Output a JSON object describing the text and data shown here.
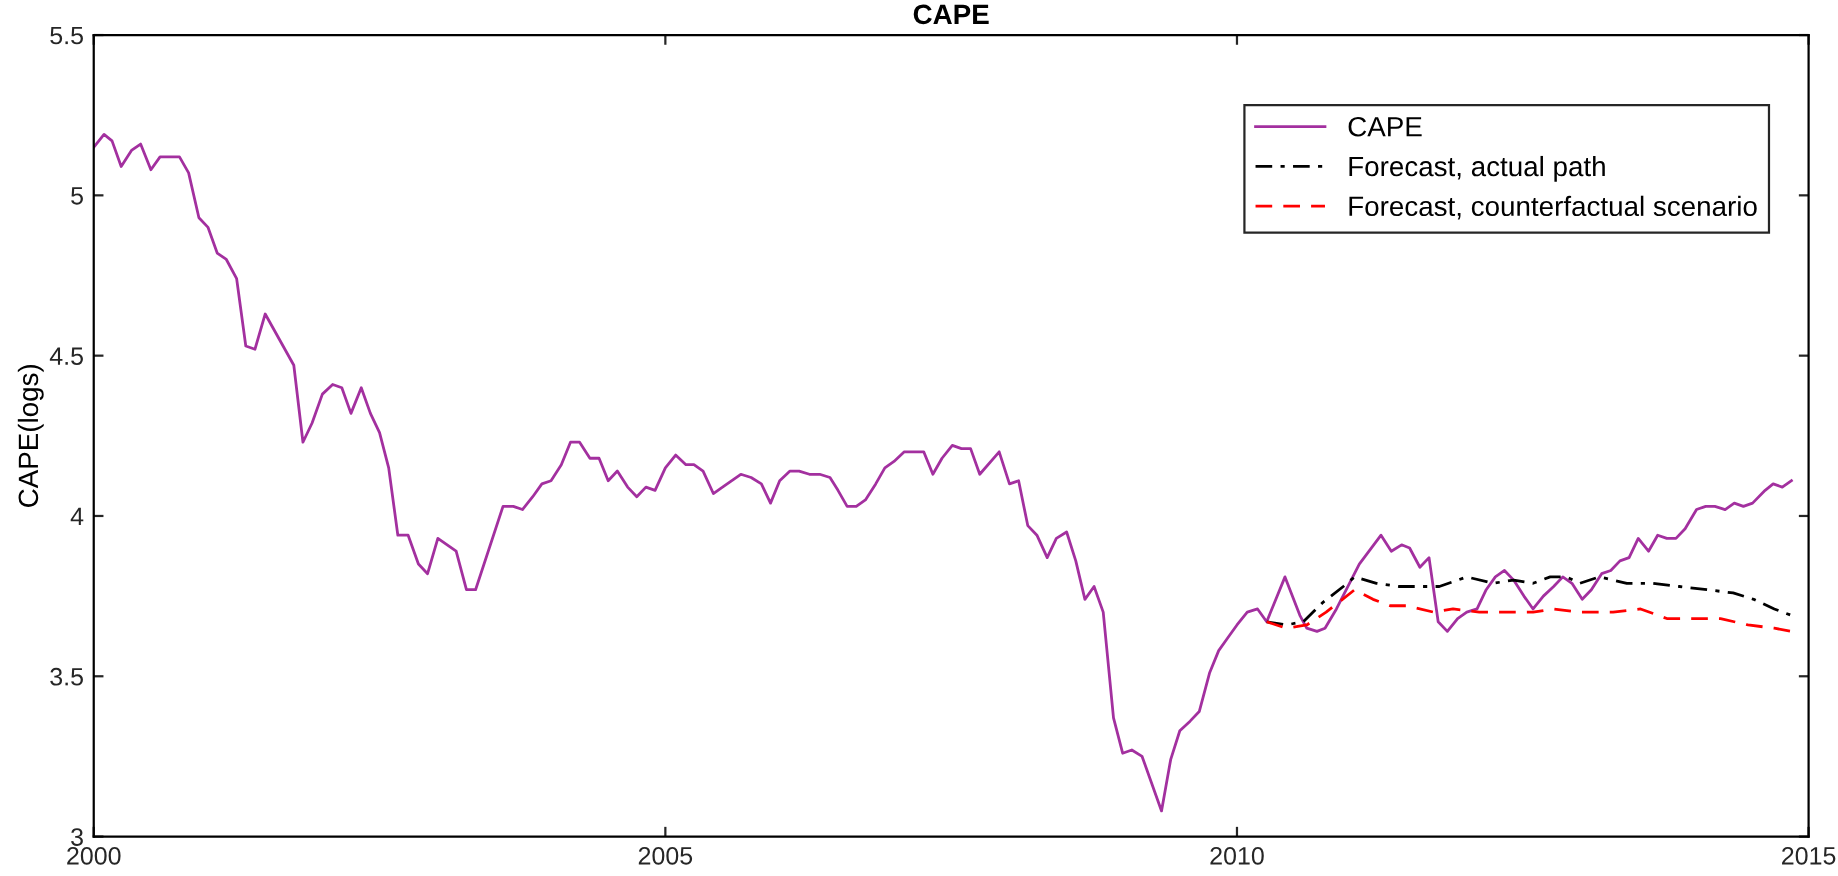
{
  "chart_data": {
    "type": "line",
    "title": "CAPE",
    "ylabel": "CAPE(logs)",
    "xlim": [
      2000,
      2015
    ],
    "xticks": [
      2000,
      2005,
      2010,
      2015
    ],
    "ylim": [
      3,
      5.5
    ],
    "yticks": [
      3,
      3.5,
      4,
      4.5,
      5,
      5.5
    ],
    "grid": false,
    "legend": "top right",
    "marker": "none",
    "series": [
      {
        "name": "CAPE",
        "color": "#a3309f",
        "line_style": "solid",
        "x": [
          2000.0,
          2000.09,
          2000.16,
          2000.24,
          2000.33,
          2000.41,
          2000.5,
          2000.58,
          2000.75,
          2000.83,
          2000.92,
          2001.0,
          2001.08,
          2001.16,
          2001.25,
          2001.33,
          2001.41,
          2001.5,
          2001.75,
          2001.83,
          2001.91,
          2002.0,
          2002.09,
          2002.17,
          2002.25,
          2002.34,
          2002.42,
          2002.5,
          2002.58,
          2002.66,
          2002.75,
          2002.84,
          2002.92,
          2003.01,
          2003.17,
          2003.26,
          2003.34,
          2003.58,
          2003.67,
          2003.75,
          2003.84,
          2003.92,
          2004.0,
          2004.09,
          2004.17,
          2004.25,
          2004.34,
          2004.42,
          2004.5,
          2004.58,
          2004.67,
          2004.75,
          2004.83,
          2004.91,
          2005.0,
          2005.09,
          2005.18,
          2005.25,
          2005.33,
          2005.42,
          2005.5,
          2005.66,
          2005.75,
          2005.84,
          2005.92,
          2006.0,
          2006.09,
          2006.17,
          2006.26,
          2006.35,
          2006.44,
          2006.51,
          2006.59,
          2006.67,
          2006.75,
          2006.84,
          2006.92,
          2007.0,
          2007.09,
          2007.17,
          2007.26,
          2007.34,
          2007.42,
          2007.51,
          2007.59,
          2007.67,
          2007.75,
          2007.92,
          2008.01,
          2008.09,
          2008.17,
          2008.25,
          2008.34,
          2008.42,
          2008.51,
          2008.59,
          2008.67,
          2008.75,
          2008.83,
          2008.92,
          2009.0,
          2009.08,
          2009.17,
          2009.34,
          2009.42,
          2009.5,
          2009.59,
          2009.67,
          2009.76,
          2009.84,
          2009.92,
          2010.0,
          2010.09,
          2010.18,
          2010.26,
          2010.42,
          2010.55,
          2010.61,
          2010.7,
          2010.77,
          2010.87,
          2011.07,
          2011.26,
          2011.35,
          2011.44,
          2011.51,
          2011.6,
          2011.68,
          2011.76,
          2011.84,
          2011.93,
          2012.01,
          2012.1,
          2012.18,
          2012.26,
          2012.34,
          2012.42,
          2012.51,
          2012.59,
          2012.68,
          2012.77,
          2012.85,
          2012.93,
          2013.02,
          2013.1,
          2013.19,
          2013.27,
          2013.35,
          2013.43,
          2013.51,
          2013.6,
          2013.68,
          2013.76,
          2013.84,
          2013.92,
          2014.02,
          2014.1,
          2014.18,
          2014.27,
          2014.35,
          2014.43,
          2014.51,
          2014.62,
          2014.69,
          2014.77,
          2014.85
        ],
        "values": [
          5.15,
          5.19,
          5.17,
          5.09,
          5.14,
          5.16,
          5.08,
          5.12,
          5.12,
          5.07,
          4.93,
          4.9,
          4.82,
          4.8,
          4.74,
          4.53,
          4.52,
          4.63,
          4.47,
          4.23,
          4.29,
          4.38,
          4.41,
          4.4,
          4.32,
          4.4,
          4.32,
          4.26,
          4.15,
          3.94,
          3.94,
          3.85,
          3.82,
          3.93,
          3.89,
          3.77,
          3.77,
          4.03,
          4.03,
          4.02,
          4.06,
          4.1,
          4.11,
          4.16,
          4.23,
          4.23,
          4.18,
          4.18,
          4.11,
          4.14,
          4.09,
          4.06,
          4.09,
          4.08,
          4.15,
          4.19,
          4.16,
          4.16,
          4.14,
          4.07,
          4.09,
          4.13,
          4.12,
          4.1,
          4.04,
          4.11,
          4.14,
          4.14,
          4.13,
          4.13,
          4.12,
          4.08,
          4.03,
          4.03,
          4.05,
          4.1,
          4.15,
          4.17,
          4.2,
          4.2,
          4.2,
          4.13,
          4.18,
          4.22,
          4.21,
          4.21,
          4.13,
          4.2,
          4.1,
          4.11,
          3.97,
          3.94,
          3.87,
          3.93,
          3.95,
          3.86,
          3.74,
          3.78,
          3.7,
          3.37,
          3.26,
          3.27,
          3.25,
          3.08,
          3.24,
          3.33,
          3.36,
          3.39,
          3.51,
          3.58,
          3.62,
          3.66,
          3.7,
          3.71,
          3.67,
          3.81,
          3.69,
          3.65,
          3.64,
          3.65,
          3.71,
          3.85,
          3.94,
          3.89,
          3.91,
          3.9,
          3.84,
          3.87,
          3.67,
          3.64,
          3.68,
          3.7,
          3.71,
          3.77,
          3.81,
          3.83,
          3.8,
          3.75,
          3.71,
          3.75,
          3.78,
          3.81,
          3.79,
          3.74,
          3.77,
          3.82,
          3.83,
          3.86,
          3.87,
          3.93,
          3.89,
          3.94,
          3.93,
          3.93,
          3.96,
          4.02,
          4.03,
          4.03,
          4.02,
          4.04,
          4.03,
          4.04,
          4.08,
          4.1,
          4.09,
          4.11
        ]
      },
      {
        "name": "Forecast, actual path",
        "color": "#000000",
        "line_style": "dashdot",
        "x": [
          2010.26,
          2010.43,
          2010.58,
          2010.75,
          2010.93,
          2011.03,
          2011.22,
          2011.42,
          2011.6,
          2011.77,
          2012.01,
          2012.24,
          2012.42,
          2012.59,
          2012.74,
          2012.88,
          2013.0,
          2013.17,
          2013.41,
          2013.64,
          2013.87,
          2014.11,
          2014.34,
          2014.52,
          2014.7,
          2014.85
        ],
        "values": [
          3.67,
          3.66,
          3.67,
          3.73,
          3.78,
          3.81,
          3.79,
          3.78,
          3.78,
          3.78,
          3.81,
          3.79,
          3.8,
          3.79,
          3.81,
          3.81,
          3.79,
          3.81,
          3.79,
          3.79,
          3.78,
          3.77,
          3.76,
          3.74,
          3.71,
          3.69
        ]
      },
      {
        "name": "Forecast, counterfactual scenario",
        "color": "#ff0000",
        "line_style": "dashed",
        "x": [
          2010.26,
          2010.43,
          2010.61,
          2010.78,
          2011.03,
          2011.19,
          2011.34,
          2011.48,
          2011.72,
          2011.89,
          2012.12,
          2012.42,
          2012.59,
          2012.77,
          2013.0,
          2013.29,
          2013.53,
          2013.76,
          2014.0,
          2014.23,
          2014.47,
          2014.7,
          2014.85
        ],
        "values": [
          3.67,
          3.65,
          3.66,
          3.7,
          3.77,
          3.74,
          3.72,
          3.72,
          3.7,
          3.71,
          3.7,
          3.7,
          3.7,
          3.71,
          3.7,
          3.7,
          3.71,
          3.68,
          3.68,
          3.68,
          3.66,
          3.65,
          3.64
        ]
      }
    ]
  }
}
